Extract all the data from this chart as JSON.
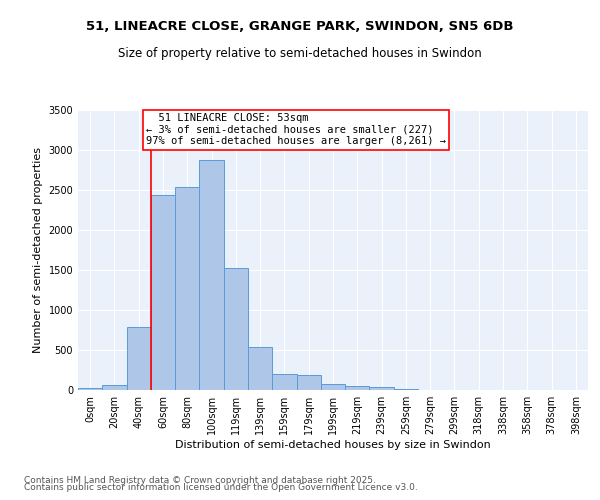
{
  "title_line1": "51, LINEACRE CLOSE, GRANGE PARK, SWINDON, SN5 6DB",
  "title_line2": "Size of property relative to semi-detached houses in Swindon",
  "xlabel": "Distribution of semi-detached houses by size in Swindon",
  "ylabel": "Number of semi-detached properties",
  "categories": [
    "0sqm",
    "20sqm",
    "40sqm",
    "60sqm",
    "80sqm",
    "100sqm",
    "119sqm",
    "139sqm",
    "159sqm",
    "179sqm",
    "199sqm",
    "219sqm",
    "239sqm",
    "259sqm",
    "279sqm",
    "299sqm",
    "318sqm",
    "338sqm",
    "358sqm",
    "378sqm",
    "398sqm"
  ],
  "values": [
    25,
    60,
    790,
    2440,
    2540,
    2880,
    1520,
    540,
    195,
    185,
    75,
    50,
    35,
    15,
    5,
    5,
    5,
    0,
    0,
    0,
    0
  ],
  "bar_color": "#aec6e8",
  "bar_edge_color": "#5b9bd5",
  "red_line_x": 2.5,
  "annotation_text": "  51 LINEACRE CLOSE: 53sqm\n← 3% of semi-detached houses are smaller (227)\n97% of semi-detached houses are larger (8,261) →",
  "annotation_box_color": "white",
  "annotation_box_edge_color": "red",
  "ylim": [
    0,
    3500
  ],
  "yticks": [
    0,
    500,
    1000,
    1500,
    2000,
    2500,
    3000,
    3500
  ],
  "bg_color": "#eaf1fb",
  "footer_line1": "Contains HM Land Registry data © Crown copyright and database right 2025.",
  "footer_line2": "Contains public sector information licensed under the Open Government Licence v3.0.",
  "title_fontsize": 9.5,
  "subtitle_fontsize": 8.5,
  "axis_label_fontsize": 8,
  "tick_fontsize": 7,
  "annotation_fontsize": 7.5,
  "footer_fontsize": 6.5
}
